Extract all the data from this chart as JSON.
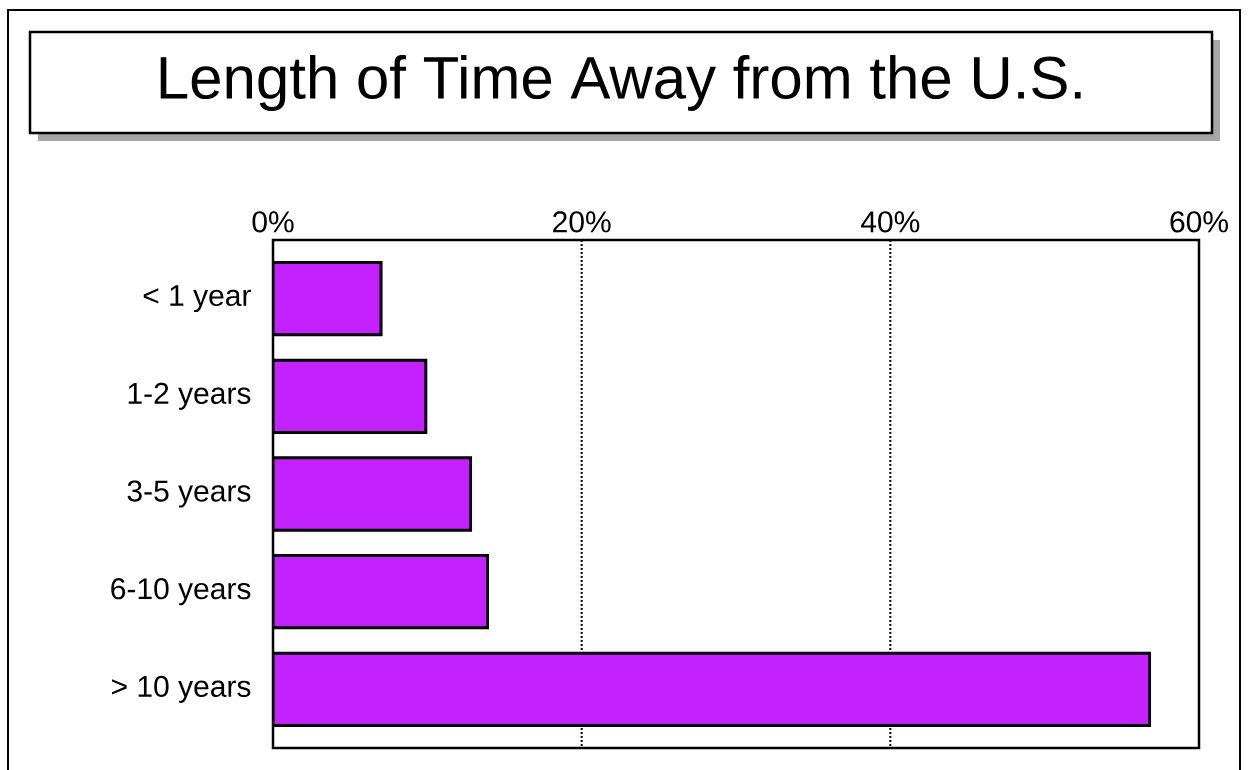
{
  "chart_data": {
    "type": "bar",
    "orientation": "horizontal",
    "title": "Length of Time Away from the U.S.",
    "categories": [
      "< 1 year",
      "1-2 years",
      "3-5 years",
      "6-10 years",
      "> 10 years"
    ],
    "values": [
      7.0,
      9.9,
      12.8,
      13.9,
      56.8
    ],
    "color": "#c322ff",
    "xlim": [
      0,
      60
    ],
    "xticks": [
      {
        "value": 0,
        "label": "0%"
      },
      {
        "value": 20,
        "label": "20%"
      },
      {
        "value": 40,
        "label": "40%"
      },
      {
        "value": 60,
        "label": "60%"
      }
    ],
    "grid": "x"
  }
}
